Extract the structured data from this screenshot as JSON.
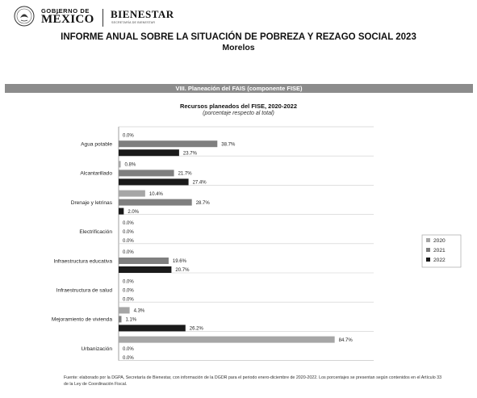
{
  "header": {
    "gobierno_line1": "GOBIERNO DE",
    "gobierno_line2": "MÉXICO",
    "bienestar": "BIENESTAR",
    "bienestar_sub": "SECRETARÍA DE BIENESTAR"
  },
  "report": {
    "title": "INFORME ANUAL SOBRE LA SITUACIÓN DE POBREZA Y REZAGO SOCIAL 2023",
    "state": "Morelos"
  },
  "section": {
    "title": "VIII. Planeación del FAIS (componente FISE)"
  },
  "colors": {
    "2020": "#a6a6a6",
    "2021": "#7f7f7f",
    "2022": "#1a1a1a"
  },
  "chart_data": {
    "type": "bar",
    "orientation": "horizontal",
    "title": "Recursos planeados del FISE, 2020-2022",
    "subtitle": "(porcentaje respecto al total)",
    "categories": [
      "Agua potable",
      "Alcantarillado",
      "Drenaje y letrinas",
      "Electrificación",
      "Infraestructura educativa",
      "Infraestructura de salud",
      "Mejoramiento de vivienda",
      "Urbanización"
    ],
    "series": [
      {
        "name": "2020",
        "values": [
          0.0,
          0.8,
          10.4,
          0.0,
          0.0,
          0.0,
          4.3,
          84.7
        ],
        "labels": [
          "0.0%",
          "0.8%",
          "10.4%",
          "0.0%",
          "0.0%",
          "0.0%",
          "4.3%",
          "84.7%"
        ]
      },
      {
        "name": "2021",
        "values": [
          38.7,
          21.7,
          28.7,
          0.0,
          19.6,
          0.0,
          1.1,
          0.0
        ],
        "labels": [
          "38.7%",
          "21.7%",
          "28.7%",
          "0.0%",
          "19.6%",
          "0.0%",
          "1.1%",
          "0.0%"
        ]
      },
      {
        "name": "2022",
        "values": [
          23.7,
          27.4,
          2.0,
          0.0,
          20.7,
          0.0,
          26.2,
          0.0
        ],
        "labels": [
          "23.7%",
          "27.4%",
          "2.0%",
          "0.0%",
          "20.7%",
          "0.0%",
          "26.2%",
          "0.0%"
        ]
      }
    ],
    "xlim": [
      0,
      100
    ],
    "grid": false,
    "legend_position": "right"
  },
  "source_note": "Fuente: elaborado por la DGPA, Secretaría de Bienestar, con información de la DGDR para el periodo enero-diciembre de 2020-2022. Los porcentajes se presentan según contenidos en el Artículo 33 de la Ley de Coordinación Fiscal."
}
